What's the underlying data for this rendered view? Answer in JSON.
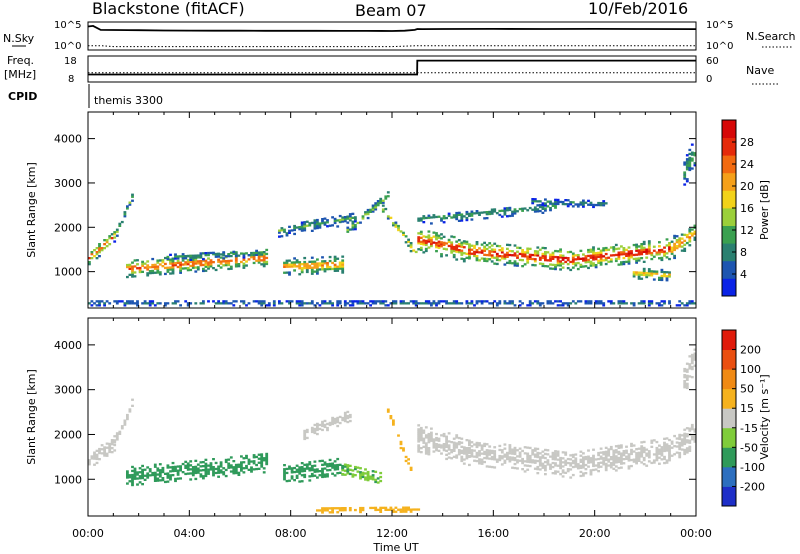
{
  "header": {
    "radar_title": "Blackstone (fitACF)",
    "beam_title": "Beam 07",
    "date_title": "10/Feb/2016"
  },
  "summary": {
    "nsky_label": "N.Sky",
    "nsearch_label": "N.Search",
    "freq_label_line1": "Freq.",
    "freq_label_line2": "[MHz]",
    "nave_label": "Nave",
    "cpid_label": "CPID",
    "cpid_text": "themis 3300",
    "left_ticks_top": [
      "10^5",
      "10^0"
    ],
    "right_ticks_top": [
      "10^5",
      "10^0"
    ],
    "left_ticks_freq": [
      "18",
      "8"
    ],
    "right_ticks_nave": [
      "60",
      "0"
    ]
  },
  "axes": {
    "x_ticks": [
      "00:00",
      "04:00",
      "08:00",
      "12:00",
      "16:00",
      "20:00",
      "00:00"
    ],
    "x_label": "Time UT",
    "y_label": "Slant Range [km]",
    "y_ticks": [
      "1000",
      "2000",
      "3000",
      "4000"
    ]
  },
  "colorbars": {
    "power": {
      "label": "Power [dB]",
      "ticks": [
        "4",
        "8",
        "12",
        "16",
        "20",
        "24",
        "28"
      ],
      "colors": [
        "#0a23e6",
        "#1d55b0",
        "#2a8070",
        "#3aa050",
        "#9bcf3a",
        "#f2d21a",
        "#f5a01a",
        "#f26a10",
        "#e52a0a",
        "#d60808"
      ]
    },
    "velocity": {
      "label": "Velocity [m s⁻¹]",
      "ticks": [
        "200",
        "100",
        "50",
        "15",
        "-15",
        "-50",
        "-100",
        "-200"
      ],
      "colors": [
        "#1e2fc8",
        "#2d6fbf",
        "#2f9a5a",
        "#7fcc3a",
        "#c8c8c4",
        "#f5b21e",
        "#f08a14",
        "#ea4f10",
        "#e01b0b"
      ]
    }
  },
  "chart_data": [
    {
      "type": "line",
      "title": "N.Sky / N.Search",
      "xlim": [
        0,
        24
      ],
      "y_scale": "log",
      "ylim": [
        1,
        100000
      ],
      "series": [
        {
          "name": "N.Sky",
          "style": "solid",
          "x": [
            0,
            0.2,
            0.5,
            1,
            2,
            3,
            4,
            5,
            6,
            7,
            8,
            9,
            10,
            11,
            12,
            12.5,
            12.9,
            13.0,
            13.2,
            14,
            16,
            18,
            20,
            22,
            24
          ],
          "y": [
            30000,
            40000,
            6000,
            5500,
            5000,
            4500,
            4200,
            4000,
            4000,
            3900,
            3800,
            3800,
            3700,
            3600,
            3500,
            4000,
            6000,
            9000,
            8500,
            9000,
            9500,
            9000,
            9500,
            9000,
            8500
          ]
        },
        {
          "name": "N.Search",
          "style": "dotted",
          "x": [
            0,
            0.5,
            1,
            4,
            8,
            12,
            13,
            16,
            20,
            24
          ],
          "y": [
            3,
            3,
            2,
            2,
            2,
            2,
            3,
            3,
            3,
            3
          ]
        }
      ]
    },
    {
      "type": "line",
      "title": "Freq. / Nave",
      "xlim": [
        0,
        24
      ],
      "ylim": [
        8,
        18
      ],
      "y2lim": [
        0,
        60
      ],
      "series": [
        {
          "name": "Freq.",
          "style": "solid",
          "x": [
            0,
            12.99,
            13.0,
            24
          ],
          "y": [
            10.5,
            10.5,
            16.8,
            16.8
          ]
        },
        {
          "name": "Nave",
          "style": "dotted",
          "axis": "right",
          "x": [
            0,
            24
          ],
          "y": [
            20,
            20
          ]
        }
      ]
    },
    {
      "type": "heatmap",
      "title": "Power [dB]",
      "xlabel": "Time UT",
      "ylabel": "Slant Range [km]",
      "xlim": [
        0,
        24
      ],
      "ylim": [
        180,
        4600
      ],
      "value_range": [
        0,
        30
      ],
      "bands": [
        {
          "x": [
            0.0,
            1.0
          ],
          "center": [
            1300,
            1750
          ],
          "width": 300,
          "value": 18
        },
        {
          "x": [
            1.0,
            1.8
          ],
          "center": [
            1750,
            2800
          ],
          "width": 180,
          "value": 9
        },
        {
          "x": [
            1.5,
            7.0
          ],
          "center": [
            1050,
            1300
          ],
          "width": 380,
          "value": 17
        },
        {
          "x": [
            3.0,
            6.8
          ],
          "center": [
            1300,
            1400
          ],
          "width": 160,
          "value": 7
        },
        {
          "x": [
            7.7,
            10.0
          ],
          "center": [
            1100,
            1150
          ],
          "width": 380,
          "value": 15
        },
        {
          "x": [
            7.5,
            10.5
          ],
          "center": [
            1900,
            2200
          ],
          "width": 260,
          "value": 8
        },
        {
          "x": [
            10.2,
            11.8
          ],
          "center": [
            1900,
            2700
          ],
          "width": 220,
          "value": 9
        },
        {
          "x": [
            11.6,
            12.9
          ],
          "center": [
            2400,
            1400
          ],
          "width": 220,
          "value": 12
        },
        {
          "x": [
            13.0,
            15.0
          ],
          "center": [
            1700,
            1450
          ],
          "width": 520,
          "value": 19
        },
        {
          "x": [
            15.0,
            19.0
          ],
          "center": [
            1450,
            1250
          ],
          "width": 480,
          "value": 20
        },
        {
          "x": [
            19.0,
            23.0
          ],
          "center": [
            1250,
            1500
          ],
          "width": 460,
          "value": 20
        },
        {
          "x": [
            23.0,
            24.0
          ],
          "center": [
            1500,
            1900
          ],
          "width": 500,
          "value": 15
        },
        {
          "x": [
            13.0,
            18.5
          ],
          "center": [
            2150,
            2450
          ],
          "width": 220,
          "value": 7
        },
        {
          "x": [
            17.5,
            20.5
          ],
          "center": [
            2550,
            2500
          ],
          "width": 140,
          "value": 6
        },
        {
          "x": [
            21.5,
            23.0
          ],
          "center": [
            950,
            900
          ],
          "width": 240,
          "value": 13
        },
        {
          "x": [
            23.5,
            24.0
          ],
          "center": [
            3200,
            3800
          ],
          "width": 600,
          "value": 8
        },
        {
          "x": [
            0.0,
            24.0
          ],
          "center": [
            280,
            280
          ],
          "width": 120,
          "value": 5
        }
      ]
    },
    {
      "type": "heatmap",
      "title": "Velocity [m s⁻¹]",
      "xlabel": "Time UT",
      "ylabel": "Slant Range [km]",
      "xlim": [
        0,
        24
      ],
      "ylim": [
        180,
        4600
      ],
      "value_range": [
        -200,
        200
      ],
      "bands": [
        {
          "x": [
            0.0,
            1.0
          ],
          "center": [
            1400,
            1800
          ],
          "width": 350,
          "value": 0
        },
        {
          "x": [
            1.0,
            1.8
          ],
          "center": [
            1800,
            2800
          ],
          "width": 200,
          "value": 0
        },
        {
          "x": [
            1.5,
            7.0
          ],
          "center": [
            1050,
            1350
          ],
          "width": 420,
          "value": -80
        },
        {
          "x": [
            7.7,
            10.0
          ],
          "center": [
            1100,
            1250
          ],
          "width": 420,
          "value": -80
        },
        {
          "x": [
            10.0,
            11.5
          ],
          "center": [
            1200,
            1000
          ],
          "width": 300,
          "value": -60
        },
        {
          "x": [
            8.5,
            10.3
          ],
          "center": [
            2000,
            2400
          ],
          "width": 240,
          "value": 0
        },
        {
          "x": [
            11.8,
            12.7
          ],
          "center": [
            2500,
            1200
          ],
          "width": 200,
          "value": 45
        },
        {
          "x": [
            13.0,
            15.0
          ],
          "center": [
            1900,
            1600
          ],
          "width": 600,
          "value": 0
        },
        {
          "x": [
            15.0,
            19.0
          ],
          "center": [
            1600,
            1300
          ],
          "width": 560,
          "value": 0
        },
        {
          "x": [
            19.0,
            23.0
          ],
          "center": [
            1300,
            1650
          ],
          "width": 560,
          "value": 0
        },
        {
          "x": [
            23.0,
            24.0
          ],
          "center": [
            1650,
            2000
          ],
          "width": 560,
          "value": 0
        },
        {
          "x": [
            23.5,
            24.0
          ],
          "center": [
            3200,
            3800
          ],
          "width": 600,
          "value": 0
        },
        {
          "x": [
            9.0,
            13.0
          ],
          "center": [
            300,
            320
          ],
          "width": 120,
          "value": 40
        }
      ]
    }
  ]
}
